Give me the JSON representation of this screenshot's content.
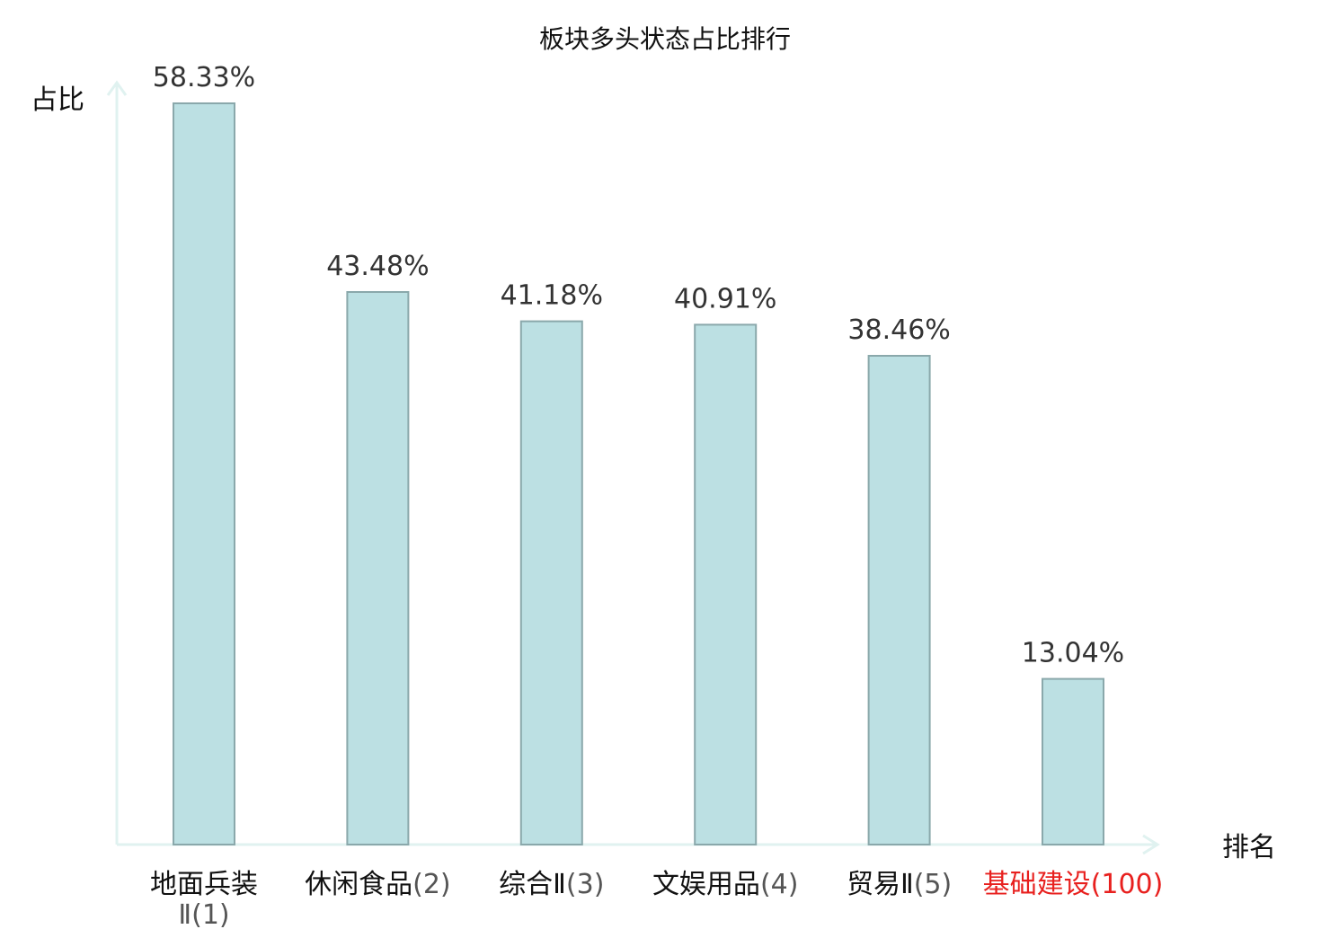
{
  "chart_data": {
    "type": "bar",
    "title": "板块多头状态占比排行",
    "ylabel": "占比",
    "xlabel": "排名",
    "ylim": [
      0,
      60
    ],
    "grid": false,
    "legend": "none",
    "categories": [
      {
        "name": "地面兵装Ⅱ",
        "rank": "(1)",
        "highlight": false
      },
      {
        "name": "休闲食品",
        "rank": "(2)",
        "highlight": false
      },
      {
        "name": "综合Ⅱ",
        "rank": "(3)",
        "highlight": false
      },
      {
        "name": "文娱用品",
        "rank": "(4)",
        "highlight": false
      },
      {
        "name": "贸易Ⅱ",
        "rank": "(5)",
        "highlight": false
      },
      {
        "name": "基础建设",
        "rank": "(100)",
        "highlight": true
      }
    ],
    "values": [
      58.33,
      43.48,
      41.18,
      40.91,
      38.46,
      13.04
    ],
    "value_labels": [
      "58.33%",
      "43.48%",
      "41.18%",
      "40.91%",
      "38.46%",
      "13.04%"
    ],
    "colors": {
      "bar_fill": "#bce0e3",
      "bar_stroke": "#8aa8ab",
      "axis": "#e0f2f0",
      "highlight": "#e8201e"
    }
  }
}
